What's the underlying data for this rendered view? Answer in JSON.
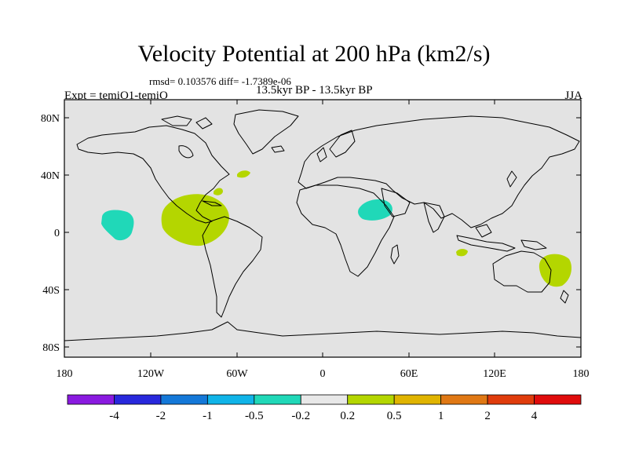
{
  "title": "Velocity Potential at 200 hPa (km2/s)",
  "stats_line": "rmsd= 0.103576 diff= -1.7389e-06",
  "subtitle": "13.5kyr BP - 13.5kyr BP",
  "experiment": "Expt = temiO1-temiO",
  "season": "JJA",
  "map": {
    "ocean_color": "#e3e3e3",
    "lat_ticks": [
      "80N",
      "40N",
      "0",
      "40S",
      "80S"
    ],
    "lon_ticks": [
      "180",
      "120W",
      "60W",
      "0",
      "60E",
      "120E",
      "180"
    ],
    "anomalies": [
      {
        "name": "central-pacific-low",
        "sign": "negative",
        "color": "#20d8b8"
      },
      {
        "name": "central-america-high",
        "sign": "positive",
        "color": "#b4d600"
      },
      {
        "name": "atlantic-high",
        "sign": "positive",
        "color": "#b4d600"
      },
      {
        "name": "east-africa-low",
        "sign": "negative",
        "color": "#20d8b8"
      },
      {
        "name": "indian-ocean-high",
        "sign": "positive",
        "color": "#b4d600"
      },
      {
        "name": "australia-high",
        "sign": "positive",
        "color": "#b4d600"
      }
    ]
  },
  "colorbar": {
    "colors": [
      "#8a1ae0",
      "#2828dc",
      "#1478d8",
      "#10b4e8",
      "#20d8b8",
      "#e8e8e8",
      "#b4d600",
      "#e0b400",
      "#e07814",
      "#e03c0c",
      "#e00c0c"
    ],
    "labels": [
      "-4",
      "-2",
      "-1",
      "-0.5",
      "-0.2",
      "0.2",
      "0.5",
      "1",
      "2",
      "4"
    ]
  }
}
